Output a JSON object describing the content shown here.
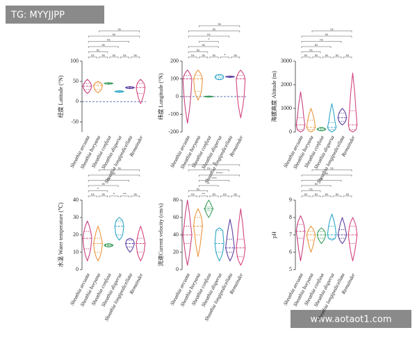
{
  "watermarks": [
    "TG: MYYJJPP",
    "www.aotaot1.com"
  ],
  "chart_data": [
    {
      "type": "violin",
      "ylabel": "经度 Latitude (°N)",
      "zero_line": true,
      "categories": [
        "Sheathia arcuata",
        "Sheathia boryana",
        "Sheathia confusa",
        "Sheathia dispersa",
        "Sheathia longipedicellata",
        "Remainder"
      ],
      "colors": [
        "#c8407e",
        "#e8963c",
        "#3a9e5c",
        "#2ea6c6",
        "#5b3da0",
        "#d2457e"
      ],
      "values": [
        [
          20,
          30,
          38,
          45,
          55
        ],
        [
          22,
          30,
          40,
          45,
          50
        ],
        [
          43,
          44,
          45,
          46,
          47
        ],
        [
          23,
          24,
          25,
          26,
          27
        ],
        [
          32,
          33,
          35,
          36,
          37
        ],
        [
          -5,
          20,
          35,
          45,
          55
        ]
      ],
      "ylim": [
        -75,
        100
      ],
      "yticks": [
        -50,
        0,
        50,
        100
      ],
      "brackets": [
        {
          "pair": [
            0,
            1
          ],
          "label": "ns"
        },
        {
          "pair": [
            1,
            2
          ],
          "label": "ns"
        },
        {
          "pair": [
            2,
            3
          ],
          "label": "ns"
        },
        {
          "pair": [
            3,
            4
          ],
          "label": "ns"
        },
        {
          "pair": [
            4,
            5
          ],
          "label": "ns"
        },
        {
          "pair": [
            0,
            2
          ],
          "label": "ns"
        },
        {
          "pair": [
            0,
            3
          ],
          "label": "ns"
        },
        {
          "pair": [
            0,
            4
          ],
          "label": "ns"
        },
        {
          "pair": [
            0,
            5
          ],
          "label": "ns"
        },
        {
          "pair": [
            1,
            5
          ],
          "label": "ns"
        }
      ]
    },
    {
      "type": "violin",
      "ylabel": "纬度 Longitude (°N)",
      "zero_line": true,
      "categories": [
        "Sheathia arcuata",
        "Sheathia boryana",
        "Sheathia confusa",
        "Sheathia dispersa",
        "Sheathia longipedicellata",
        "Remainder"
      ],
      "colors": [
        "#c8407e",
        "#e8963c",
        "#3a9e5c",
        "#2ea6c6",
        "#5b3da0",
        "#d2457e"
      ],
      "values": [
        [
          -150,
          0,
          100,
          120,
          150
        ],
        [
          -20,
          30,
          100,
          120,
          150
        ],
        [
          -3,
          -2,
          0,
          2,
          3
        ],
        [
          95,
          100,
          110,
          120,
          125
        ],
        [
          108,
          110,
          112,
          114,
          116
        ],
        [
          -120,
          0,
          100,
          120,
          150
        ]
      ],
      "ylim": [
        -200,
        200
      ],
      "yticks": [
        -200,
        -100,
        0,
        100,
        200
      ],
      "brackets": [
        {
          "pair": [
            0,
            1
          ],
          "label": "ns"
        },
        {
          "pair": [
            1,
            2
          ],
          "label": "ns"
        },
        {
          "pair": [
            2,
            3
          ],
          "label": "ns"
        },
        {
          "pair": [
            3,
            4
          ],
          "label": "*"
        },
        {
          "pair": [
            4,
            5
          ],
          "label": "ns"
        },
        {
          "pair": [
            0,
            2
          ],
          "label": "ns"
        },
        {
          "pair": [
            0,
            3
          ],
          "label": "ns"
        },
        {
          "pair": [
            1,
            3
          ],
          "label": "*"
        },
        {
          "pair": [
            0,
            4
          ],
          "label": "ns"
        },
        {
          "pair": [
            0,
            5
          ],
          "label": "ns"
        },
        {
          "pair": [
            1,
            5
          ],
          "label": "ns"
        }
      ]
    },
    {
      "type": "violin",
      "ylabel": "海拔高度 Altitude (m)",
      "zero_line": false,
      "categories": [
        "Sheathia arcuata",
        "Sheathia boryana",
        "Sheathia confusa",
        "Sheathia dispersa",
        "Sheathia longipedicellata",
        "Remainder"
      ],
      "colors": [
        "#c8407e",
        "#e8963c",
        "#3a9e5c",
        "#2ea6c6",
        "#5b3da0",
        "#d2457e"
      ],
      "values": [
        [
          0,
          100,
          300,
          600,
          1700
        ],
        [
          0,
          100,
          200,
          500,
          1000
        ],
        [
          50,
          80,
          120,
          160,
          200
        ],
        [
          0,
          100,
          200,
          400,
          1200
        ],
        [
          300,
          450,
          600,
          800,
          1000
        ],
        [
          0,
          100,
          300,
          900,
          2500
        ]
      ],
      "ylim": [
        0,
        3000
      ],
      "yticks": [
        0,
        1000,
        2000,
        3000
      ],
      "brackets": [
        {
          "pair": [
            0,
            1
          ],
          "label": "ns"
        },
        {
          "pair": [
            1,
            2
          ],
          "label": "ns"
        },
        {
          "pair": [
            2,
            3
          ],
          "label": "ns"
        },
        {
          "pair": [
            3,
            4
          ],
          "label": "ns"
        },
        {
          "pair": [
            4,
            5
          ],
          "label": "ns"
        },
        {
          "pair": [
            0,
            2
          ],
          "label": "ns"
        },
        {
          "pair": [
            0,
            3
          ],
          "label": "ns"
        },
        {
          "pair": [
            0,
            4
          ],
          "label": "ns"
        },
        {
          "pair": [
            0,
            5
          ],
          "label": "ns"
        },
        {
          "pair": [
            1,
            5
          ],
          "label": "ns"
        }
      ]
    },
    {
      "type": "violin",
      "ylabel": "水温 Water temperature (℃)",
      "zero_line": false,
      "categories": [
        "Sheathia arcuata",
        "Sheathia boryana",
        "Sheathia confusa",
        "Sheathia dispersa",
        "Sheathia longipedicellata",
        "Remainder"
      ],
      "colors": [
        "#c8407e",
        "#e8963c",
        "#3a9e5c",
        "#2ea6c6",
        "#5b3da0",
        "#d2457e"
      ],
      "values": [
        [
          5,
          12,
          18,
          22,
          28
        ],
        [
          5,
          10,
          15,
          18,
          25
        ],
        [
          13,
          13.5,
          14,
          14.5,
          15
        ],
        [
          17,
          20,
          25,
          28,
          30
        ],
        [
          10,
          13,
          15,
          17,
          18
        ],
        [
          5,
          10,
          15,
          18,
          25
        ]
      ],
      "ylim": [
        0,
        40
      ],
      "yticks": [
        0,
        10,
        20,
        30,
        40
      ],
      "brackets": [
        {
          "pair": [
            0,
            1
          ],
          "label": "ns"
        },
        {
          "pair": [
            1,
            2
          ],
          "label": "ns"
        },
        {
          "pair": [
            2,
            3
          ],
          "label": "*"
        },
        {
          "pair": [
            3,
            4
          ],
          "label": "**"
        },
        {
          "pair": [
            4,
            5
          ],
          "label": "ns"
        },
        {
          "pair": [
            0,
            2
          ],
          "label": "*"
        },
        {
          "pair": [
            0,
            3
          ],
          "label": "ns"
        },
        {
          "pair": [
            0,
            4
          ],
          "label": "ns"
        },
        {
          "pair": [
            0,
            5
          ],
          "label": "ns"
        },
        {
          "pair": [
            1,
            5
          ],
          "label": "ns"
        }
      ]
    },
    {
      "type": "violin",
      "ylabel": "流速Current velocity (cm/s)",
      "zero_line": false,
      "categories": [
        "Sheathia arcuata",
        "Sheathia boryana",
        "Sheathia confusa",
        "Sheathia dispersa",
        "Sheathia longipedicellata",
        "Remainder"
      ],
      "colors": [
        "#c8407e",
        "#e8963c",
        "#3a9e5c",
        "#2ea6c6",
        "#5b3da0",
        "#d2457e"
      ],
      "values": [
        [
          5,
          30,
          40,
          50,
          80
        ],
        [
          15,
          40,
          50,
          60,
          70
        ],
        [
          60,
          68,
          70,
          72,
          80
        ],
        [
          10,
          20,
          30,
          45,
          48
        ],
        [
          10,
          20,
          25,
          35,
          58
        ],
        [
          5,
          15,
          25,
          35,
          70
        ]
      ],
      "ylim": [
        0,
        80
      ],
      "yticks": [
        0,
        20,
        40,
        60,
        80
      ],
      "brackets": [
        {
          "pair": [
            0,
            1
          ],
          "label": "ns"
        },
        {
          "pair": [
            1,
            2
          ],
          "label": "**"
        },
        {
          "pair": [
            2,
            3
          ],
          "label": "ns"
        },
        {
          "pair": [
            3,
            4
          ],
          "label": "ns"
        },
        {
          "pair": [
            4,
            5
          ],
          "label": "ns"
        },
        {
          "pair": [
            0,
            2
          ],
          "label": "ns"
        },
        {
          "pair": [
            1,
            3
          ],
          "label": "*"
        },
        {
          "pair": [
            1,
            4
          ],
          "label": "***"
        },
        {
          "pair": [
            1,
            5
          ],
          "label": "****"
        },
        {
          "pair": [
            0,
            4
          ],
          "label": "ns"
        },
        {
          "pair": [
            0,
            5
          ],
          "label": "ns"
        }
      ]
    },
    {
      "type": "violin",
      "ylabel": "pH",
      "zero_line": false,
      "categories": [
        "Sheathia arcuata",
        "Sheathia boryana",
        "Sheathia confusa",
        "Sheathia dispersa",
        "Sheathia longipedicellata",
        "Remainder"
      ],
      "colors": [
        "#c8407e",
        "#e8963c",
        "#3a9e5c",
        "#2ea6c6",
        "#5b3da0",
        "#d2457e"
      ],
      "values": [
        [
          5.5,
          6.8,
          7.2,
          7.6,
          8.1
        ],
        [
          6,
          6.7,
          7,
          7.2,
          7.5
        ],
        [
          6.5,
          6.8,
          7,
          7.2,
          7.4
        ],
        [
          6.7,
          6.8,
          7,
          7.5,
          8.2
        ],
        [
          6.5,
          6.8,
          7,
          7.3,
          8
        ],
        [
          5.5,
          6.5,
          7,
          7.5,
          8
        ]
      ],
      "ylim": [
        5,
        9
      ],
      "yticks": [
        5,
        6,
        7,
        8,
        9
      ],
      "brackets": [
        {
          "pair": [
            0,
            1
          ],
          "label": "ns"
        },
        {
          "pair": [
            1,
            2
          ],
          "label": "ns"
        },
        {
          "pair": [
            2,
            3
          ],
          "label": "ns"
        },
        {
          "pair": [
            3,
            4
          ],
          "label": "ns"
        },
        {
          "pair": [
            4,
            5
          ],
          "label": "ns"
        },
        {
          "pair": [
            0,
            2
          ],
          "label": "ns"
        },
        {
          "pair": [
            0,
            3
          ],
          "label": "ns"
        },
        {
          "pair": [
            0,
            4
          ],
          "label": "ns"
        },
        {
          "pair": [
            0,
            5
          ],
          "label": "ns"
        },
        {
          "pair": [
            1,
            5
          ],
          "label": "ns"
        }
      ]
    }
  ]
}
